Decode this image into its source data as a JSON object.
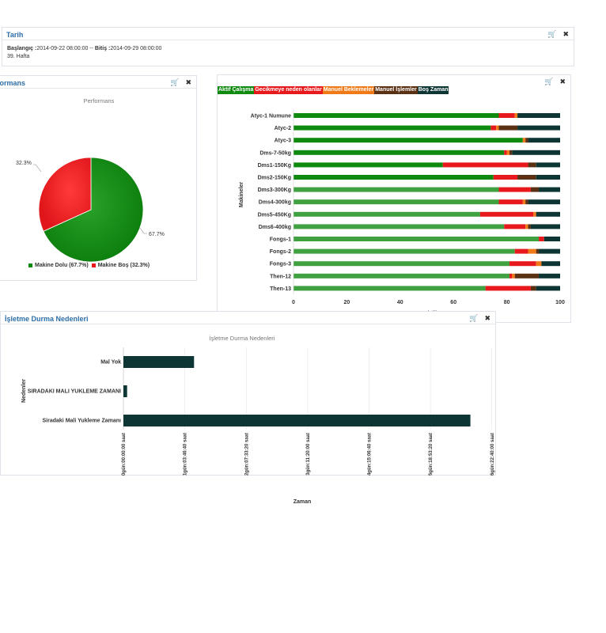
{
  "tarih": {
    "title": "Tarih",
    "start_label": "Başlangıç :",
    "start_value": "2014-09-22 08:00:00",
    "separator": " -- ",
    "end_label": "Bitiş :",
    "end_value": "2014-09-29 08:00:00",
    "week": "39. Hafta"
  },
  "toolbar_icons": {
    "cart": "cart-icon",
    "close": "close-icon",
    "cart_glyph": "🛒",
    "close_glyph": "✖"
  },
  "performans": {
    "title": "Performans",
    "chart_title": "Performans",
    "label_dolu": "67.7%",
    "label_bos": "32.3%",
    "legend": [
      {
        "label": "Makine Dolu (67.7%)",
        "color": "#0a8a0a"
      },
      {
        "label": "Makine Boş (32.3%)",
        "color": "#e8191c"
      }
    ]
  },
  "makineler": {
    "chart_data": {
      "type": "bar",
      "orientation": "horizontal",
      "stacked": true,
      "title": "",
      "xlabel": "Yüzdelik",
      "ylabel": "Makineler",
      "xlim": [
        0,
        100
      ],
      "x_ticks": [
        "0",
        "20",
        "40",
        "60",
        "80",
        "100"
      ],
      "legend_position": "top-left",
      "categories": [
        "Atyc-1 Numune",
        "Atyc-2",
        "Atyc-3",
        "Dms-7-50kg",
        "Dms1-150Kg",
        "Dms2-150Kg",
        "Dms3-300Kg",
        "Dms4-300kg",
        "Dms5-450Kg",
        "Dms6-400kg",
        "Fongs-1",
        "Fongs-2",
        "Fongs-3",
        "Then-12",
        "Then-13"
      ],
      "series": [
        {
          "name": "Aktif Çalışma",
          "color": "#0e8a0e",
          "values": [
            77,
            74,
            86,
            79,
            56,
            75,
            77,
            77,
            70,
            79,
            92,
            83,
            81,
            81,
            72
          ]
        },
        {
          "name": "Gecikmeye neden olanlar",
          "color": "#e8191c",
          "values": [
            6,
            2,
            0,
            1,
            32,
            9,
            12,
            9,
            20,
            8,
            2,
            5,
            10,
            1,
            17
          ]
        },
        {
          "name": "Manuel Beklemeler",
          "color": "#f07a18",
          "values": [
            1,
            1,
            1,
            1,
            0,
            0,
            0,
            1,
            1,
            1,
            0,
            3,
            2,
            1,
            0
          ]
        },
        {
          "name": "Manuel İşlemler",
          "color": "#5b3114",
          "values": [
            0,
            7,
            1,
            1,
            3,
            7,
            3,
            1,
            0,
            1,
            0,
            1,
            0,
            9,
            2
          ]
        },
        {
          "name": "Boş Zaman",
          "color": "#0c3533",
          "values": [
            16,
            16,
            12,
            18,
            9,
            9,
            8,
            12,
            9,
            11,
            6,
            8,
            7,
            8,
            9
          ]
        }
      ]
    }
  },
  "durma": {
    "title": "İşletme Durma Nedenleri",
    "chart_title": "İşletme Durma Nedenleri",
    "chart_data": {
      "type": "bar",
      "orientation": "horizontal",
      "title": "İşletme Durma Nedenleri",
      "xlabel": "Zaman",
      "ylabel": "Nedenler",
      "categories": [
        "Mal Yok",
        "SIRADAKI MALI YUKLEME ZAMANI",
        "Siradaki Mali Yukleme Zamanı"
      ],
      "values_seconds": [
        115000,
        6000,
        565000
      ],
      "xlim_seconds": [
        0,
        590000
      ],
      "tick_seconds": [
        0,
        100000,
        200000,
        300000,
        400000,
        500000,
        600000
      ],
      "tick_labels": [
        "0gün:00:00:00 saat",
        "1gün:03:46:40 saat",
        "2gün:07:33:20 saat",
        "3gün:11:20:00 saat",
        "4gün:15:06:40 saat",
        "5gün:18:53:20 saat",
        "6gün:22:40:00 saat"
      ],
      "bar_color": "#0c3533",
      "grid": true
    }
  },
  "colors": {
    "accent": "#2d6fa8",
    "green": "#0a8a0a",
    "red": "#e8191c"
  }
}
